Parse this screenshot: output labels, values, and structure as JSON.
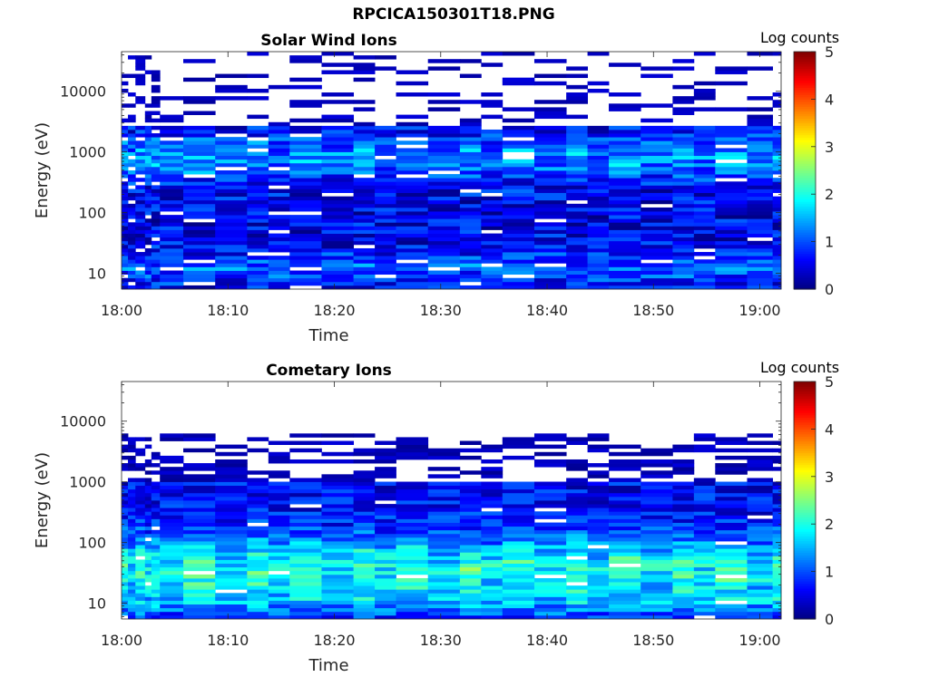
{
  "figure_title": "RPCICA150301T18.PNG",
  "colors": {
    "cmap": "jet",
    "axis": "#262626",
    "background": "#ffffff"
  },
  "chart_data": [
    {
      "type": "heatmap",
      "title": "Solar Wind Ions",
      "xlabel": "Time",
      "ylabel": "Energy (eV)",
      "colorbar_label": "Log counts",
      "colorbar_ticks": [
        "0",
        "1",
        "2",
        "3",
        "4",
        "5"
      ],
      "clim": [
        0,
        5
      ],
      "xticks": [
        "18:00",
        "18:10",
        "18:20",
        "18:30",
        "18:40",
        "18:50",
        "19:00"
      ],
      "yticks": [
        "10",
        "100",
        "1000",
        "10000"
      ],
      "x_range_minutes": [
        0,
        62
      ],
      "y_scale": "log",
      "ylim": [
        5.5,
        45000
      ],
      "x_starts_minutes": [
        0,
        0.6,
        1.3,
        2.2,
        2.8,
        3.6,
        5.8,
        8.8,
        11.8,
        13.8,
        15.8,
        18.8,
        21.8,
        23.8,
        25.8,
        28.8,
        31.8,
        33.8,
        35.8,
        38.8,
        41.8,
        43.8,
        45.8,
        48.8,
        51.8,
        53.8,
        55.8,
        58.8,
        61.2
      ],
      "profile": "solar_wind",
      "seed": 7
    },
    {
      "type": "heatmap",
      "title": "Cometary Ions",
      "xlabel": "Time",
      "ylabel": "Energy (eV)",
      "colorbar_label": "Log counts",
      "colorbar_ticks": [
        "0",
        "1",
        "2",
        "3",
        "4",
        "5"
      ],
      "clim": [
        0,
        5
      ],
      "xticks": [
        "18:00",
        "18:10",
        "18:20",
        "18:30",
        "18:40",
        "18:50",
        "19:00"
      ],
      "yticks": [
        "10",
        "100",
        "1000",
        "10000"
      ],
      "x_range_minutes": [
        0,
        62
      ],
      "y_scale": "log",
      "ylim": [
        5.5,
        45000
      ],
      "x_starts_minutes": [
        0,
        0.6,
        1.3,
        2.2,
        2.8,
        3.6,
        5.8,
        8.8,
        11.8,
        13.8,
        15.8,
        18.8,
        21.8,
        23.8,
        25.8,
        28.8,
        31.8,
        33.8,
        35.8,
        38.8,
        41.8,
        43.8,
        45.8,
        48.8,
        51.8,
        53.8,
        55.8,
        58.8,
        61.2
      ],
      "profile": "cometary",
      "seed": 19
    }
  ]
}
